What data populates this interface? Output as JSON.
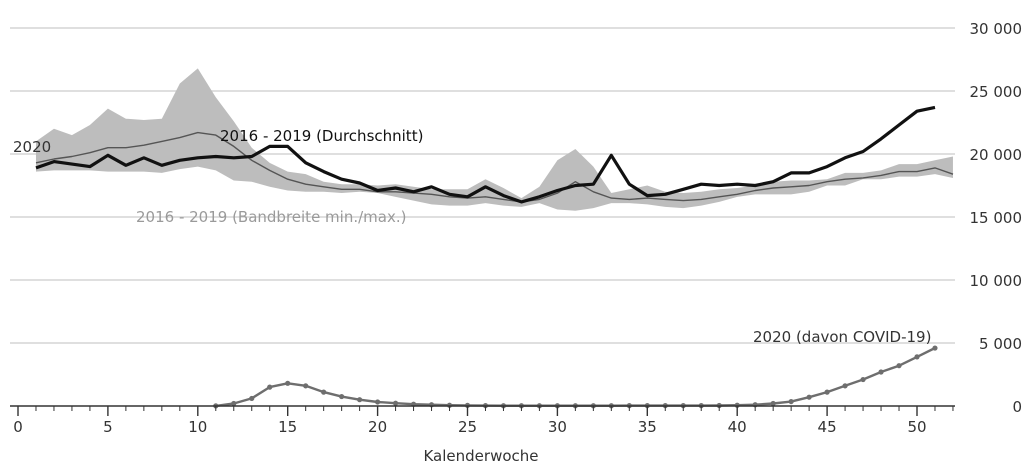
{
  "chart_data": {
    "type": "line",
    "title": "",
    "xlabel": "Kalenderwoche",
    "ylabel": "",
    "xlim": [
      0,
      52
    ],
    "ylim": [
      0,
      30000
    ],
    "x_ticks": [
      0,
      5,
      10,
      15,
      20,
      25,
      30,
      35,
      40,
      45,
      50
    ],
    "x_tick_labels": [
      "0",
      "5",
      "10",
      "15",
      "20",
      "25",
      "30",
      "35",
      "40",
      "45",
      "50"
    ],
    "y_ticks": [
      0,
      5000,
      10000,
      15000,
      20000,
      25000,
      30000
    ],
    "y_tick_labels": [
      "0",
      "5 000",
      "10 000",
      "15 000",
      "20 000",
      "25 000",
      "30 000"
    ],
    "grid": "horizontal",
    "colors": {
      "band": "#bdbdbd",
      "avg": "#555555",
      "current": "#111111",
      "covid": "#6e6e6e",
      "grid": "#cccccc",
      "axis": "#333333",
      "band_label": "#9a9a9a"
    },
    "band": {
      "name": "2016 - 2019 (Bandbreite min./max.)",
      "x": [
        1,
        2,
        3,
        4,
        5,
        6,
        7,
        8,
        9,
        10,
        11,
        12,
        13,
        14,
        15,
        16,
        17,
        18,
        19,
        20,
        21,
        22,
        23,
        24,
        25,
        26,
        27,
        28,
        29,
        30,
        31,
        32,
        33,
        34,
        35,
        36,
        37,
        38,
        39,
        40,
        41,
        42,
        43,
        44,
        45,
        46,
        47,
        48,
        49,
        50,
        51,
        52
      ],
      "min": [
        18600,
        18700,
        18700,
        18700,
        18600,
        18600,
        18600,
        18500,
        18800,
        19000,
        18700,
        17900,
        17800,
        17400,
        17100,
        17000,
        17000,
        16900,
        17000,
        16900,
        16600,
        16300,
        16000,
        15900,
        15900,
        16100,
        15900,
        15800,
        16100,
        15600,
        15500,
        15700,
        16100,
        16100,
        16000,
        15800,
        15700,
        15900,
        16200,
        16600,
        16800,
        16800,
        16800,
        17000,
        17500,
        17500,
        18000,
        18000,
        18200,
        18200,
        18400,
        18100
      ],
      "max": [
        21000,
        22000,
        21500,
        22300,
        23600,
        22800,
        22700,
        22800,
        25600,
        26800,
        24500,
        22600,
        20500,
        19300,
        18600,
        18400,
        17800,
        17600,
        17600,
        17500,
        17600,
        17400,
        17200,
        17200,
        17200,
        18000,
        17300,
        16500,
        17400,
        19500,
        20400,
        19000,
        16900,
        17200,
        17500,
        17000,
        16900,
        17000,
        17200,
        17300,
        17500,
        17800,
        17900,
        17900,
        18000,
        18500,
        18500,
        18700,
        19200,
        19200,
        19500,
        19800
      ]
    },
    "series": [
      {
        "name": "2016 - 2019 (Durchschnitt)",
        "x": [
          1,
          2,
          3,
          4,
          5,
          6,
          7,
          8,
          9,
          10,
          11,
          12,
          13,
          14,
          15,
          16,
          17,
          18,
          19,
          20,
          21,
          22,
          23,
          24,
          25,
          26,
          27,
          28,
          29,
          30,
          31,
          32,
          33,
          34,
          35,
          36,
          37,
          38,
          39,
          40,
          41,
          42,
          43,
          44,
          45,
          46,
          47,
          48,
          49,
          50,
          51,
          52
        ],
        "values": [
          19300,
          19600,
          19800,
          20100,
          20500,
          20500,
          20700,
          21000,
          21300,
          21700,
          21500,
          20600,
          19500,
          18700,
          18000,
          17600,
          17400,
          17200,
          17200,
          17000,
          17000,
          16900,
          16800,
          16600,
          16500,
          16600,
          16400,
          16200,
          16400,
          16900,
          17800,
          17000,
          16500,
          16400,
          16500,
          16400,
          16300,
          16400,
          16600,
          16800,
          17100,
          17300,
          17400,
          17500,
          17800,
          18000,
          18100,
          18300,
          18600,
          18600,
          18900,
          18400
        ]
      },
      {
        "name": "2020",
        "x": [
          1,
          2,
          3,
          4,
          5,
          6,
          7,
          8,
          9,
          10,
          11,
          12,
          13,
          14,
          15,
          16,
          17,
          18,
          19,
          20,
          21,
          22,
          23,
          24,
          25,
          26,
          27,
          28,
          29,
          30,
          31,
          32,
          33,
          34,
          35,
          36,
          37,
          38,
          39,
          40,
          41,
          42,
          43,
          44,
          45,
          46,
          47,
          48,
          49,
          50,
          51
        ],
        "values": [
          18900,
          19400,
          19200,
          19000,
          19900,
          19100,
          19700,
          19100,
          19500,
          19700,
          19800,
          19700,
          19800,
          20600,
          20600,
          19300,
          18600,
          18000,
          17700,
          17100,
          17300,
          17000,
          17400,
          16800,
          16600,
          17400,
          16700,
          16200,
          16600,
          17100,
          17500,
          17600,
          19900,
          17600,
          16700,
          16800,
          17200,
          17600,
          17500,
          17600,
          17500,
          17800,
          18500,
          18500,
          19000,
          19700,
          20200,
          21200,
          22300,
          23400,
          23700
        ]
      },
      {
        "name": "2020 (davon COVID-19)",
        "x": [
          11,
          12,
          13,
          14,
          15,
          16,
          17,
          18,
          19,
          20,
          21,
          22,
          23,
          24,
          25,
          26,
          27,
          28,
          29,
          30,
          31,
          32,
          33,
          34,
          35,
          36,
          37,
          38,
          39,
          40,
          41,
          42,
          43,
          44,
          45,
          46,
          47,
          48,
          49,
          50,
          51
        ],
        "values": [
          10,
          200,
          600,
          1500,
          1800,
          1600,
          1100,
          750,
          500,
          320,
          220,
          140,
          100,
          60,
          50,
          30,
          20,
          20,
          20,
          20,
          20,
          20,
          20,
          30,
          30,
          30,
          30,
          30,
          40,
          60,
          100,
          200,
          350,
          700,
          1100,
          1600,
          2100,
          2700,
          3200,
          3900,
          4600
        ]
      }
    ],
    "annotations": {
      "avg_label": "2016 - 2019 (Durchschnitt)",
      "band_label": "2016 - 2019 (Bandbreite min./max.)",
      "current_label": "2020",
      "covid_label": "2020 (davon COVID-19)"
    }
  }
}
